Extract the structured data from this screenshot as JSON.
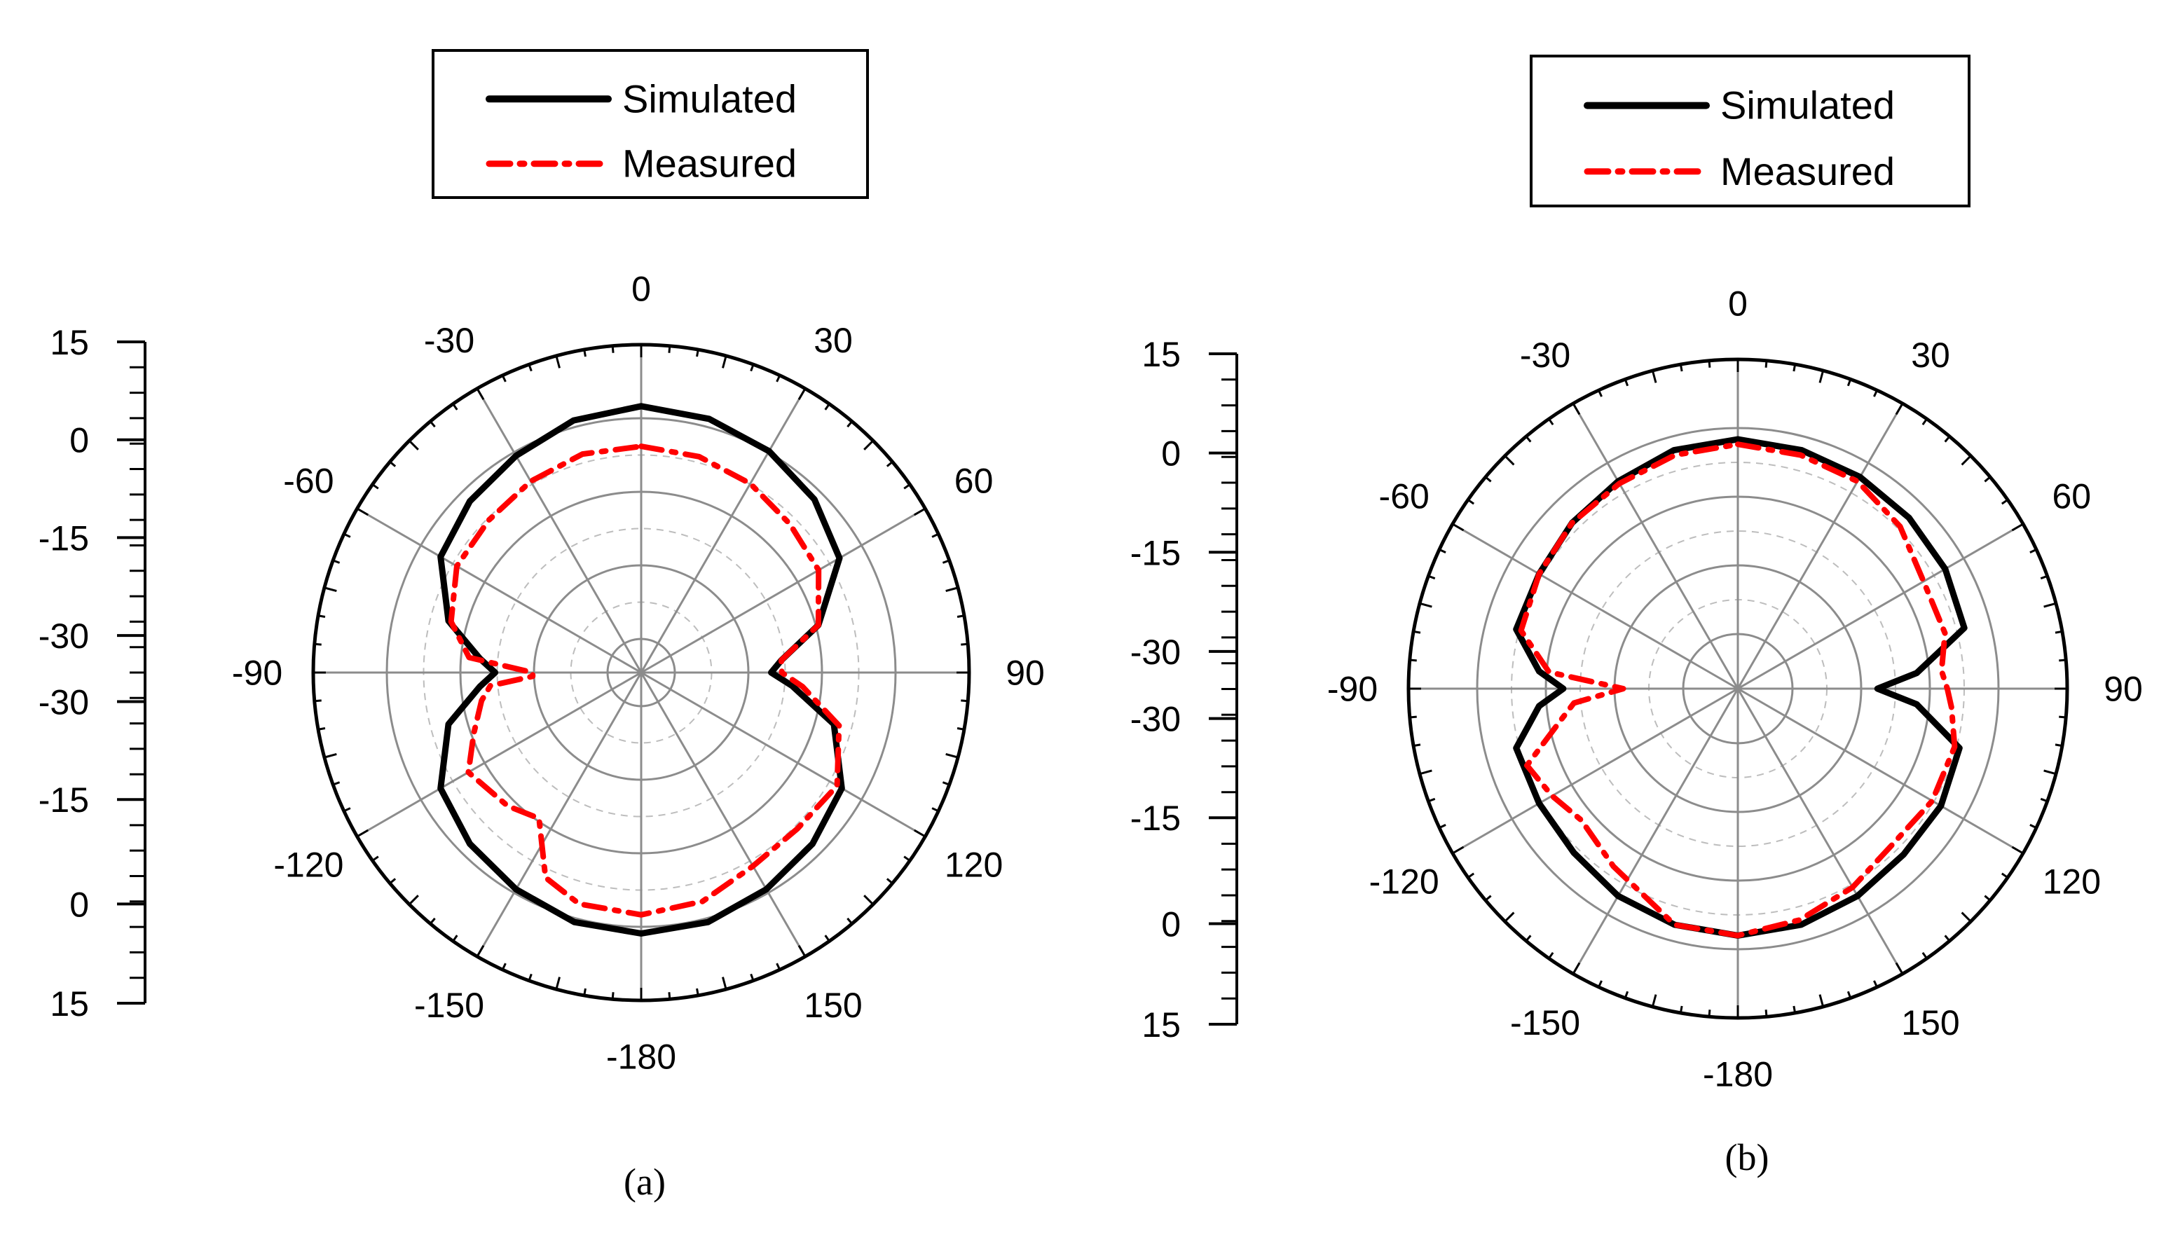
{
  "figure": {
    "panels": [
      {
        "caption": "(a)",
        "legend": [
          {
            "label": "Simulated",
            "color": "#000000",
            "style": "solid"
          },
          {
            "label": "Measured",
            "color": "#ff0000",
            "style": "dash-dot"
          }
        ],
        "scale_tick_labels": [
          "15",
          "0",
          "-15",
          "-30",
          "-30",
          "-15",
          "0",
          "15"
        ],
        "angle_labels": [
          "0",
          "30",
          "60",
          "90",
          "120",
          "150",
          "-180",
          "-150",
          "-120",
          "-90",
          "-60",
          "-30"
        ]
      },
      {
        "caption": "(b)",
        "legend": [
          {
            "label": "Simulated",
            "color": "#000000",
            "style": "solid"
          },
          {
            "label": "Measured",
            "color": "#ff0000",
            "style": "dash-dot"
          }
        ],
        "scale_tick_labels": [
          "15",
          "0",
          "-15",
          "-30",
          "-30",
          "-15",
          "0",
          "15"
        ],
        "angle_labels": [
          "0",
          "30",
          "60",
          "90",
          "120",
          "150",
          "-180",
          "-150",
          "-120",
          "-90",
          "-60",
          "-30"
        ]
      }
    ]
  },
  "chart_data": [
    {
      "type": "polar-line",
      "title": "",
      "theta_unit": "deg",
      "r_range": [
        -40,
        15
      ],
      "r_ticks": [
        15,
        0,
        -15,
        -30
      ],
      "theta_ticks": [
        0,
        30,
        60,
        90,
        120,
        150,
        180,
        -150,
        -120,
        -90,
        -60,
        -30
      ],
      "grid": true,
      "legend_position": "top",
      "series": [
        {
          "name": "Simulated",
          "color": "#000000",
          "theta": [
            0,
            15,
            30,
            45,
            60,
            75,
            85,
            90,
            95,
            105,
            120,
            135,
            150,
            165,
            180,
            195,
            210,
            225,
            240,
            255,
            265,
            270,
            275,
            285,
            300,
            315,
            330,
            345,
            360
          ],
          "r": [
            3.5,
            2.8,
            1.5,
            -0.5,
            -3.5,
            -12,
            -20,
            -22,
            -18,
            -9,
            -3,
            -1,
            0.5,
            2,
            2.5,
            2,
            0.5,
            -1,
            -3,
            -9,
            -16,
            -19,
            -16,
            -9,
            -3,
            -1,
            0.5,
            2.5,
            3.5
          ]
        },
        {
          "name": "Measured",
          "color": "#ff0000",
          "theta": [
            0,
            15,
            30,
            45,
            60,
            75,
            85,
            90,
            95,
            105,
            120,
            135,
            150,
            165,
            180,
            195,
            205,
            215,
            225,
            240,
            250,
            260,
            265,
            268,
            270,
            275,
            285,
            300,
            315,
            330,
            345,
            360
          ],
          "r": [
            -4,
            -4.5,
            -5.5,
            -7,
            -8,
            -12,
            -20,
            -20,
            -16,
            -8,
            -4,
            -5,
            -4.5,
            -2,
            -1,
            -1.5,
            -4,
            -13,
            -11,
            -9,
            -13,
            -16,
            -18,
            -26,
            -26,
            -14,
            -9.5,
            -6.5,
            -6,
            -5,
            -4,
            -4
          ]
        }
      ]
    },
    {
      "type": "polar-line",
      "title": "",
      "theta_unit": "deg",
      "r_range": [
        -40,
        15
      ],
      "r_ticks": [
        15,
        0,
        -15,
        -30
      ],
      "theta_ticks": [
        0,
        30,
        60,
        90,
        120,
        150,
        180,
        -150,
        -120,
        -90,
        -60,
        -30
      ],
      "grid": true,
      "legend_position": "top",
      "series": [
        {
          "name": "Simulated",
          "color": "#000000",
          "theta": [
            0,
            15,
            30,
            45,
            60,
            75,
            85,
            90,
            95,
            105,
            120,
            135,
            150,
            165,
            180,
            195,
            210,
            225,
            240,
            255,
            265,
            270,
            275,
            285,
            300,
            315,
            330,
            345,
            360
          ],
          "r": [
            -1,
            -1.5,
            -2,
            -2.5,
            -3,
            -4,
            -15,
            -23,
            -15,
            -5,
            -4,
            -4,
            -3,
            -2,
            -1.5,
            -2,
            -3,
            -4.5,
            -5,
            -5,
            -11,
            -16,
            -11,
            -5,
            -5,
            -4,
            -3,
            -1.5,
            -1
          ]
        },
        {
          "name": "Measured",
          "color": "#ff0000",
          "theta": [
            0,
            15,
            30,
            45,
            60,
            75,
            85,
            90,
            95,
            105,
            120,
            135,
            150,
            165,
            180,
            195,
            215,
            230,
            240,
            250,
            260,
            265,
            270,
            275,
            285,
            300,
            315,
            330,
            345,
            360
          ],
          "r": [
            -2,
            -2.5,
            -3,
            -5,
            -8,
            -8,
            -10,
            -9,
            -8,
            -6,
            -6,
            -7,
            -5,
            -3,
            -1.5,
            -2,
            -7.5,
            -10,
            -8,
            -6,
            -15,
            -18,
            -28,
            -13,
            -6,
            -5,
            -4,
            -3.5,
            -2.5,
            -2
          ]
        }
      ]
    }
  ]
}
